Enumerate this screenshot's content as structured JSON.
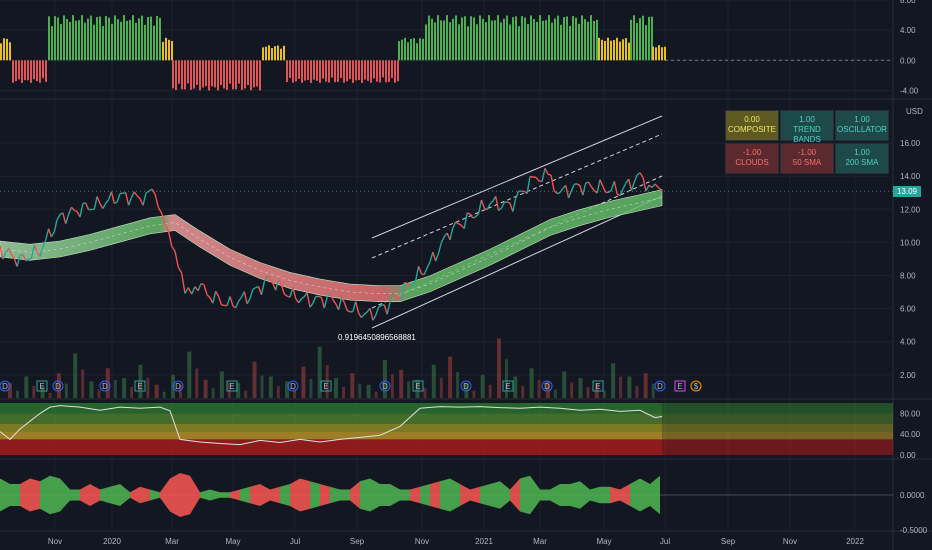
{
  "chart_data": [
    {
      "type": "bar",
      "panel": "composite-histogram",
      "ylim": [
        -5,
        8
      ],
      "y_ticks": [
        "8.00",
        "4.00",
        "0.00",
        "-4.00"
      ],
      "colors": {
        "bull": "#4caf50",
        "bear": "#e05555",
        "neutral": "#e8c020"
      },
      "segments": [
        {
          "from": 0,
          "to": 12,
          "value": 3,
          "color": "neutral"
        },
        {
          "from": 12,
          "to": 48,
          "value": -3,
          "color": "bear"
        },
        {
          "from": 48,
          "to": 162,
          "value": 6,
          "color": "bull"
        },
        {
          "from": 162,
          "to": 172,
          "value": 3,
          "color": "neutral"
        },
        {
          "from": 172,
          "to": 262,
          "value": -4,
          "color": "bear"
        },
        {
          "from": 262,
          "to": 286,
          "value": 2,
          "color": "neutral"
        },
        {
          "from": 286,
          "to": 398,
          "value": -3,
          "color": "bear"
        },
        {
          "from": 398,
          "to": 425,
          "value": 3,
          "color": "bull"
        },
        {
          "from": 425,
          "to": 598,
          "value": 6,
          "color": "bull"
        },
        {
          "from": 598,
          "to": 630,
          "value": 3,
          "color": "neutral"
        },
        {
          "from": 630,
          "to": 652,
          "value": 6,
          "color": "bull"
        },
        {
          "from": 652,
          "to": 665,
          "value": 2,
          "color": "neutral"
        }
      ]
    },
    {
      "type": "line",
      "panel": "price",
      "ylim": [
        0.6,
        18.6
      ],
      "y_ticks": [
        "16.00",
        "14.00",
        "12.00",
        "10.00",
        "8.00",
        "6.00",
        "4.00",
        "2.00"
      ],
      "unit": "USD",
      "last_price": "13.09",
      "series": [
        {
          "x": [
            0,
            20,
            40,
            60,
            80,
            100,
            120,
            140,
            155,
            165,
            175,
            185,
            195,
            210,
            230,
            250,
            270,
            290,
            310,
            330,
            350,
            370,
            390,
            410,
            430,
            450,
            470,
            490,
            510,
            530,
            545,
            560,
            580,
            600,
            620,
            640,
            655,
            662
          ],
          "values": [
            9.6,
            8.9,
            9.5,
            11.5,
            12.0,
            12.3,
            12.8,
            12.7,
            13.0,
            11.5,
            9.0,
            7.0,
            7.5,
            6.8,
            6.2,
            6.8,
            7.8,
            6.8,
            6.5,
            6.6,
            6.0,
            5.6,
            6.3,
            7.5,
            8.7,
            10.7,
            11.5,
            12.4,
            12.2,
            13.6,
            14.2,
            13.0,
            13.4,
            13.3,
            13.1,
            14.0,
            13.1,
            13.09
          ]
        },
        {
          "name": "",
          "x": [
            0,
            30,
            60,
            90,
            120,
            150,
            175,
            200,
            230,
            260,
            290,
            320,
            350,
            380,
            400,
            430,
            460,
            490,
            520,
            550,
            580,
            610,
            640,
            662
          ],
          "values": [
            9.6,
            9.4,
            9.6,
            10.0,
            10.5,
            11.0,
            11.2,
            10.2,
            9.1,
            8.3,
            7.7,
            7.3,
            7.0,
            6.9,
            6.9,
            7.5,
            8.3,
            9.1,
            10.0,
            10.9,
            11.5,
            12.0,
            12.4,
            12.7
          ]
        }
      ],
      "volume": [
        1.5,
        1.9,
        1.3,
        2.1,
        3.3,
        1.6,
        2.4,
        1.8,
        2.6,
        1.4,
        2.0,
        3.4,
        1.7,
        2.2,
        1.5,
        2.8,
        1.9,
        1.6,
        2.5,
        3.7,
        1.8,
        2.1,
        1.4,
        2.9,
        2.3,
        1.7,
        2.6,
        3.1,
        1.5,
        2.0,
        4.2,
        1.9,
        2.4,
        1.6,
        2.2,
        1.8,
        1.5,
        2.7,
        1.9,
        2.1
      ]
    },
    {
      "type": "line",
      "panel": "oscillator",
      "ylim": [
        0,
        100
      ],
      "y_ticks": [
        "80.00",
        "40.00",
        "0.00"
      ],
      "x": [
        0,
        10,
        20,
        30,
        40,
        50,
        60,
        80,
        100,
        120,
        140,
        160,
        170,
        180,
        200,
        220,
        240,
        260,
        280,
        300,
        320,
        340,
        360,
        380,
        400,
        420,
        440,
        460,
        480,
        500,
        520,
        540,
        560,
        580,
        600,
        620,
        640,
        655,
        662
      ],
      "values": [
        45,
        30,
        50,
        65,
        80,
        92,
        95,
        92,
        86,
        92,
        90,
        92,
        85,
        30,
        25,
        22,
        20,
        28,
        24,
        30,
        25,
        30,
        34,
        38,
        55,
        90,
        93,
        92,
        93,
        91,
        90,
        92,
        90,
        86,
        88,
        84,
        86,
        72,
        74
      ]
    },
    {
      "type": "area",
      "panel": "macd-histogram",
      "ylim": [
        -0.5,
        0.5
      ],
      "y_ticks": [
        "0.0000",
        "-0.5000"
      ],
      "x": [
        0,
        10,
        20,
        30,
        40,
        50,
        60,
        70,
        80,
        90,
        100,
        110,
        120,
        130,
        140,
        150,
        160,
        170,
        180,
        190,
        200,
        210,
        220,
        230,
        240,
        250,
        260,
        270,
        280,
        290,
        300,
        310,
        320,
        330,
        340,
        350,
        360,
        370,
        380,
        390,
        400,
        410,
        420,
        430,
        440,
        450,
        460,
        470,
        480,
        490,
        500,
        510,
        520,
        530,
        540,
        550,
        560,
        570,
        580,
        590,
        600,
        610,
        620,
        630,
        640,
        650,
        660
      ],
      "values": [
        0.3,
        0.2,
        -0.2,
        -0.3,
        0.25,
        0.35,
        0.3,
        0.1,
        -0.1,
        -0.2,
        0.1,
        0.15,
        0.2,
        -0.05,
        -0.15,
        0.1,
        0.05,
        -0.3,
        -0.4,
        -0.35,
        0.05,
        0.1,
        -0.05,
        0.05,
        -0.1,
        0.15,
        -0.2,
        0.1,
        -0.15,
        0.2,
        -0.3,
        0.25,
        -0.2,
        0.15,
        -0.1,
        0.1,
        -0.25,
        0.3,
        -0.2,
        0.2,
        -0.1,
        0.1,
        -0.15,
        0.2,
        -0.25,
        0.3,
        -0.2,
        0.1,
        -0.15,
        0.2,
        0.25,
        0.1,
        -0.3,
        0.35,
        0.1,
        -0.1,
        0.2,
        -0.2,
        0.25,
        -0.1,
        0.15,
        -0.15,
        0.1,
        -0.2,
        0.3,
        -0.2,
        0.35
      ]
    }
  ],
  "x_axis": {
    "labels": [
      "Nov",
      "2020",
      "Mar",
      "May",
      "Jul",
      "Sep",
      "Nov",
      "2021",
      "Mar",
      "May",
      "Jul",
      "Sep",
      "Nov",
      "2022"
    ]
  },
  "fib_label": "0.9196450896568881",
  "events": [
    {
      "x": 5,
      "type": "D"
    },
    {
      "x": 42,
      "type": "E"
    },
    {
      "x": 58,
      "type": "D"
    },
    {
      "x": 105,
      "type": "D"
    },
    {
      "x": 140,
      "type": "E"
    },
    {
      "x": 178,
      "type": "D"
    },
    {
      "x": 232,
      "type": "E"
    },
    {
      "x": 293,
      "type": "D"
    },
    {
      "x": 326,
      "type": "E"
    },
    {
      "x": 385,
      "type": "D"
    },
    {
      "x": 418,
      "type": "E"
    },
    {
      "x": 466,
      "type": "D"
    },
    {
      "x": 508,
      "type": "E"
    },
    {
      "x": 547,
      "type": "D"
    },
    {
      "x": 598,
      "type": "E"
    },
    {
      "x": 660,
      "type": "D"
    },
    {
      "x": 680,
      "type": "E"
    },
    {
      "x": 696,
      "type": "$"
    }
  ],
  "table": [
    {
      "value": "0.00",
      "label": "COMPOSITE",
      "bg": "#5c5a22",
      "fg": "#f5e663"
    },
    {
      "value": "1.00",
      "label": "TREND BANDS",
      "bg": "#1d4a48",
      "fg": "#4fd1c5"
    },
    {
      "value": "1.00",
      "label": "OSCILLATOR",
      "bg": "#1d4a48",
      "fg": "#4fd1c5"
    },
    {
      "value": "-1.00",
      "label": "CLOUDS",
      "bg": "#5a2a2e",
      "fg": "#ff6b6b"
    },
    {
      "value": "-1.00",
      "label": "50 SMA",
      "bg": "#5a2a2e",
      "fg": "#ff6b6b"
    },
    {
      "value": "1.00",
      "label": "200 SMA",
      "bg": "#1d4a48",
      "fg": "#4fd1c5"
    }
  ]
}
